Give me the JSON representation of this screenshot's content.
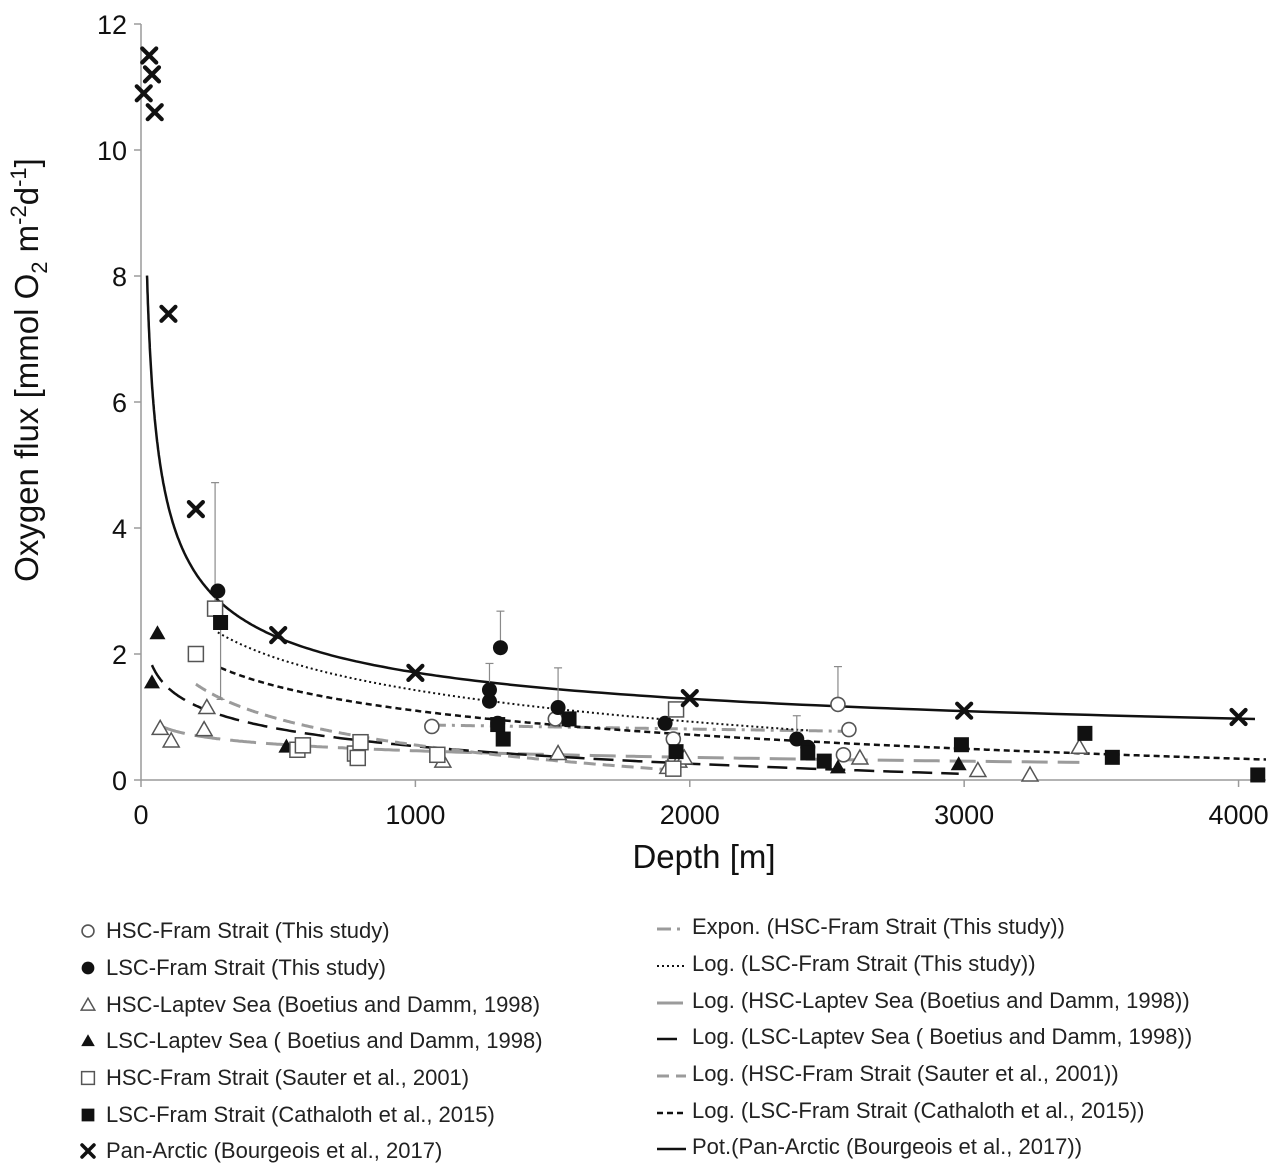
{
  "chart_data": {
    "type": "scatter",
    "xlabel": "Depth [m]",
    "ylabel_parts": [
      "Oxygen flux [mmol O",
      "2",
      " m",
      "-2",
      "d",
      "-1",
      "]"
    ],
    "xlim": [
      0,
      4100
    ],
    "ylim": [
      0,
      12
    ],
    "xticks": [
      0,
      1000,
      2000,
      3000,
      4000
    ],
    "yticks": [
      0,
      2,
      4,
      6,
      8,
      10,
      12
    ],
    "grid": false,
    "legend_position": "bottom",
    "series": [
      {
        "name": "HSC-Fram Strait (This study)",
        "marker": "circle-open",
        "points": [
          [
            1060,
            0.85
          ],
          [
            1510,
            0.97
          ],
          [
            1940,
            0.65
          ],
          [
            2540,
            1.2
          ],
          [
            2560,
            0.4
          ],
          [
            2580,
            0.8
          ]
        ],
        "errors": [
          [
            1060,
            0.85,
            0.92
          ],
          [
            2540,
            1.2,
            1.8
          ]
        ]
      },
      {
        "name": "LSC-Fram Strait (This study)",
        "marker": "circle-filled",
        "points": [
          [
            280,
            3.0
          ],
          [
            1270,
            1.25
          ],
          [
            1270,
            1.43
          ],
          [
            1300,
            0.9
          ],
          [
            1310,
            2.1
          ],
          [
            1520,
            1.15
          ],
          [
            1910,
            0.9
          ],
          [
            2390,
            0.65
          ],
          [
            2430,
            0.52
          ]
        ],
        "errors": [
          [
            1270,
            1.43,
            1.85
          ],
          [
            1310,
            2.1,
            2.68
          ],
          [
            1520,
            1.15,
            1.78
          ],
          [
            2390,
            0.65,
            1.02
          ]
        ]
      },
      {
        "name": "HSC-Laptev Sea (Boetius and Damm, 1998)",
        "marker": "triangle-open",
        "points": [
          [
            70,
            0.82
          ],
          [
            110,
            0.62
          ],
          [
            230,
            0.8
          ],
          [
            240,
            1.15
          ],
          [
            1100,
            0.3
          ],
          [
            1520,
            0.42
          ],
          [
            1920,
            0.2
          ],
          [
            1960,
            0.3
          ],
          [
            1980,
            0.35
          ],
          [
            2620,
            0.35
          ],
          [
            3050,
            0.15
          ],
          [
            3240,
            0.08
          ],
          [
            3420,
            0.52
          ]
        ]
      },
      {
        "name": "LSC-Laptev Sea ( Boetius and Damm, 1998)",
        "marker": "triangle-filled",
        "points": [
          [
            40,
            1.55
          ],
          [
            60,
            2.33
          ],
          [
            530,
            0.53
          ],
          [
            790,
            0.5
          ],
          [
            2540,
            0.2
          ],
          [
            2980,
            0.25
          ]
        ]
      },
      {
        "name": "HSC-Fram Strait (Sauter et al., 2001)",
        "marker": "square-open",
        "points": [
          [
            200,
            2.0
          ],
          [
            270,
            2.72
          ],
          [
            570,
            0.48
          ],
          [
            590,
            0.55
          ],
          [
            780,
            0.42
          ],
          [
            790,
            0.35
          ],
          [
            800,
            0.6
          ],
          [
            1080,
            0.4
          ],
          [
            1940,
            0.18
          ],
          [
            1950,
            1.12
          ]
        ],
        "errors": [
          [
            270,
            2.72,
            4.72
          ]
        ]
      },
      {
        "name": "LSC-Fram Strait (Cathaloth et al., 2015)",
        "marker": "square-filled",
        "points": [
          [
            290,
            2.5
          ],
          [
            1300,
            0.88
          ],
          [
            1320,
            0.65
          ],
          [
            1560,
            0.97
          ],
          [
            1950,
            0.45
          ],
          [
            2430,
            0.43
          ],
          [
            2490,
            0.3
          ],
          [
            2990,
            0.56
          ],
          [
            3440,
            0.74
          ],
          [
            3540,
            0.36
          ],
          [
            4070,
            0.08
          ]
        ],
        "errors": [
          [
            290,
            2.5,
            1.28
          ]
        ]
      },
      {
        "name": "Pan-Arctic (Bourgeois et al., 2017)",
        "marker": "x",
        "points": [
          [
            10,
            10.9
          ],
          [
            30,
            11.5
          ],
          [
            40,
            11.2
          ],
          [
            50,
            10.6
          ],
          [
            100,
            7.4
          ],
          [
            200,
            4.3
          ],
          [
            500,
            2.3
          ],
          [
            1000,
            1.7
          ],
          [
            2000,
            1.3
          ],
          [
            3000,
            1.1
          ],
          [
            4000,
            1.0
          ]
        ]
      }
    ],
    "trendlines": [
      {
        "name": "Expon. (HSC-Fram Strait (This study))",
        "style": "dashdot-gray",
        "kind": "exp",
        "a": 0.95,
        "b": -8e-05,
        "x_range": [
          1060,
          2580
        ]
      },
      {
        "name": "Log. (LSC-Fram Strait (This study))",
        "style": "dotted-black",
        "kind": "log",
        "a": 6.4,
        "b": -0.72,
        "x_range": [
          280,
          2430
        ]
      },
      {
        "name": "Log. (HSC-Laptev Sea (Boetius and Damm, 1998))",
        "style": "longdash-gray",
        "kind": "log",
        "a": 1.5,
        "b": -0.15,
        "x_range": [
          70,
          3420
        ]
      },
      {
        "name": "Log. (LSC-Laptev Sea ( Boetius and Damm, 1998))",
        "style": "longdash-black",
        "kind": "log",
        "a": 3.3,
        "b": -0.4,
        "x_range": [
          40,
          2980
        ]
      },
      {
        "name": "Log. (HSC-Fram Strait (Sauter et al., 2001))",
        "style": "dash-gray",
        "kind": "log",
        "a": 4.7,
        "b": -0.6,
        "x_range": [
          200,
          1950
        ]
      },
      {
        "name": "Log. (LSC-Fram Strait (Cathaloth et al., 2015))",
        "style": "shortdash-black",
        "kind": "log",
        "a": 4.9,
        "b": -0.55,
        "x_range": [
          290,
          4100
        ]
      },
      {
        "name": "Pot.(Pan-Arctic (Bourgeois et al., 2017))",
        "style": "solid-black",
        "kind": "power",
        "a": 28,
        "b": -0.405,
        "x_range": [
          22,
          4060
        ]
      }
    ]
  }
}
